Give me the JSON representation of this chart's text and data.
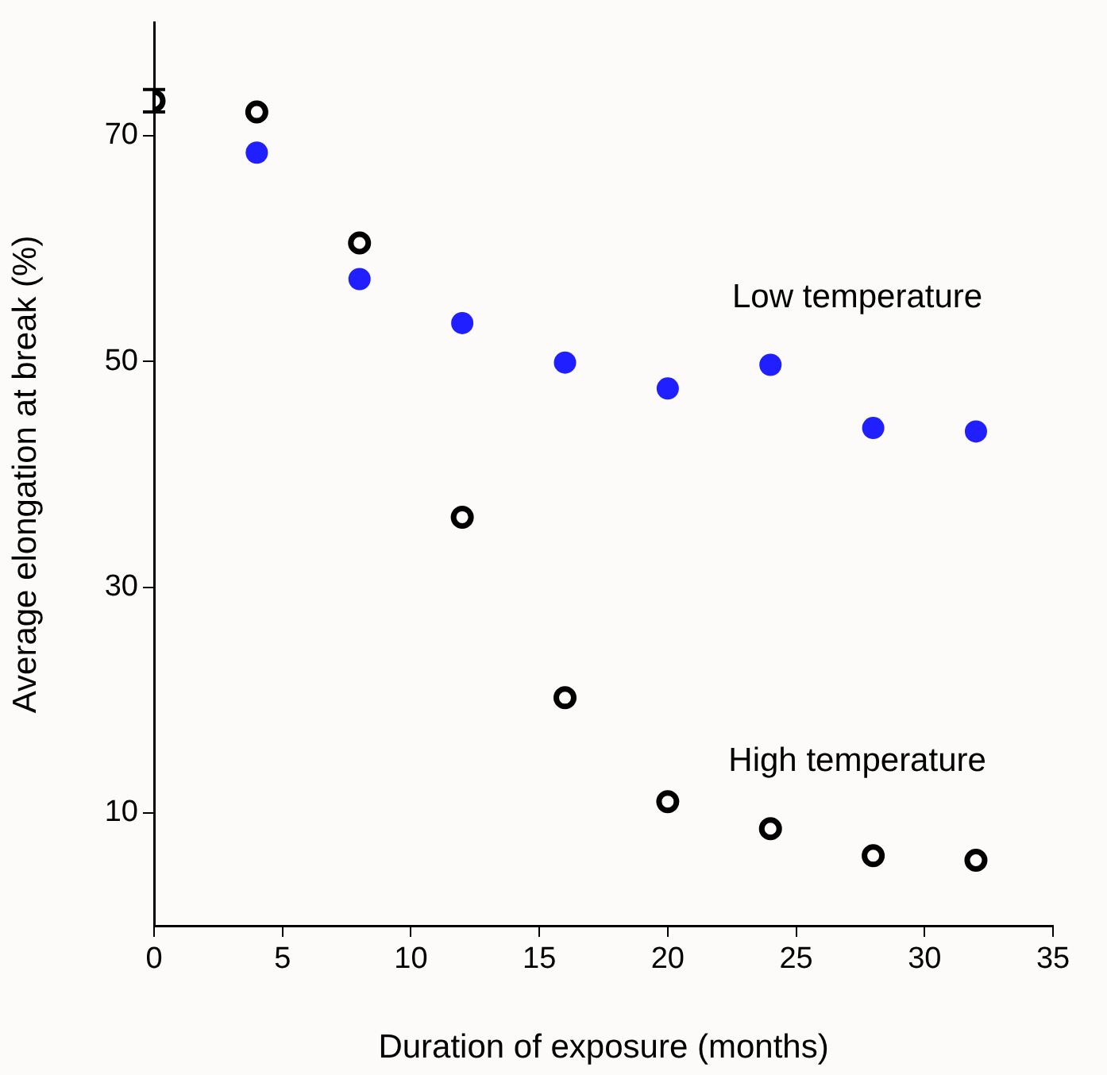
{
  "chart_data": {
    "type": "scatter",
    "xlabel": "Duration of exposure (months)",
    "ylabel": "Average elongation at break (%)",
    "xlim": [
      0,
      35
    ],
    "xticks": [
      0,
      5,
      10,
      15,
      20,
      25,
      30,
      35
    ],
    "ylim": [
      0,
      80
    ],
    "yticks": [
      10,
      30,
      50,
      70
    ],
    "grid": false,
    "legend": false,
    "marker": "circle",
    "series": [
      {
        "name": "Low temperature",
        "color": "#1f1fff",
        "x": [
          4,
          8,
          12,
          16,
          20,
          24,
          28,
          32
        ],
        "values": [
          68.5,
          57.3,
          53.4,
          49.9,
          47.6,
          49.7,
          44.1,
          43.8
        ]
      },
      {
        "name": "High temperature",
        "color": "#000000",
        "x": [
          0,
          4,
          8,
          12,
          16,
          20,
          24,
          28,
          32
        ],
        "values": [
          73.1,
          72.1,
          60.5,
          36.2,
          20.2,
          11.0,
          8.6,
          6.2,
          5.8
        ],
        "errors": [
          1.0,
          null,
          null,
          null,
          null,
          null,
          null,
          null,
          null
        ]
      }
    ]
  }
}
